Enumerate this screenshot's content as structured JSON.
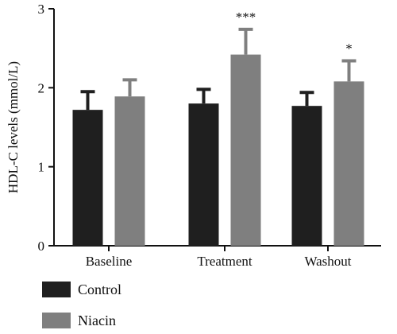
{
  "chart_data": {
    "type": "bar",
    "title": "",
    "xlabel": "",
    "ylabel": "HDL-C levels (mmol/L)",
    "ylim": [
      0,
      3
    ],
    "yticks": [
      "0",
      "1",
      "2",
      "3"
    ],
    "categories": [
      "Baseline",
      "Treatment",
      "Washout"
    ],
    "series": [
      {
        "name": "Control",
        "color": "#1f1f1f",
        "values": [
          1.72,
          1.8,
          1.77
        ],
        "errors": [
          0.23,
          0.18,
          0.17
        ],
        "annotations": [
          "",
          "",
          ""
        ]
      },
      {
        "name": "Niacin",
        "color": "#7f7f7f",
        "values": [
          1.89,
          2.42,
          2.08
        ],
        "errors": [
          0.21,
          0.32,
          0.26
        ],
        "annotations": [
          "",
          "***",
          "*"
        ]
      }
    ],
    "legend_position": "bottom-left",
    "grid": false
  }
}
